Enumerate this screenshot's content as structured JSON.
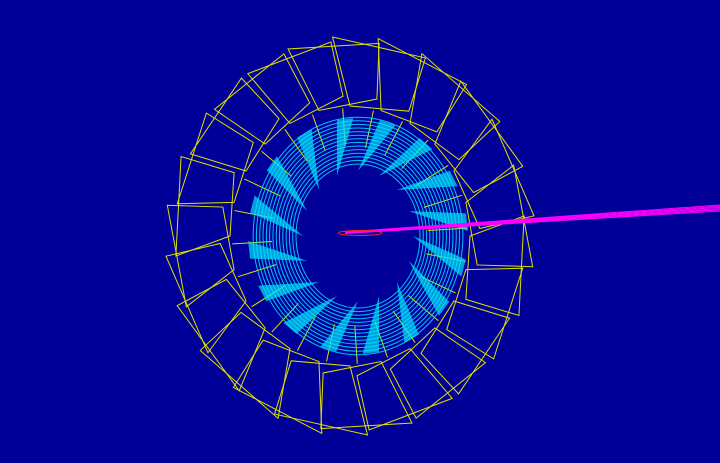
{
  "viewer": {
    "background_color": "#000099",
    "colors": {
      "outer_wireframe": "#e0e000",
      "inner_rings": "#00e5ff",
      "track": "#ff00ff",
      "track_core": "#ff2020"
    },
    "counts": {
      "outer_segments": 24,
      "inner_segments": 16
    }
  }
}
